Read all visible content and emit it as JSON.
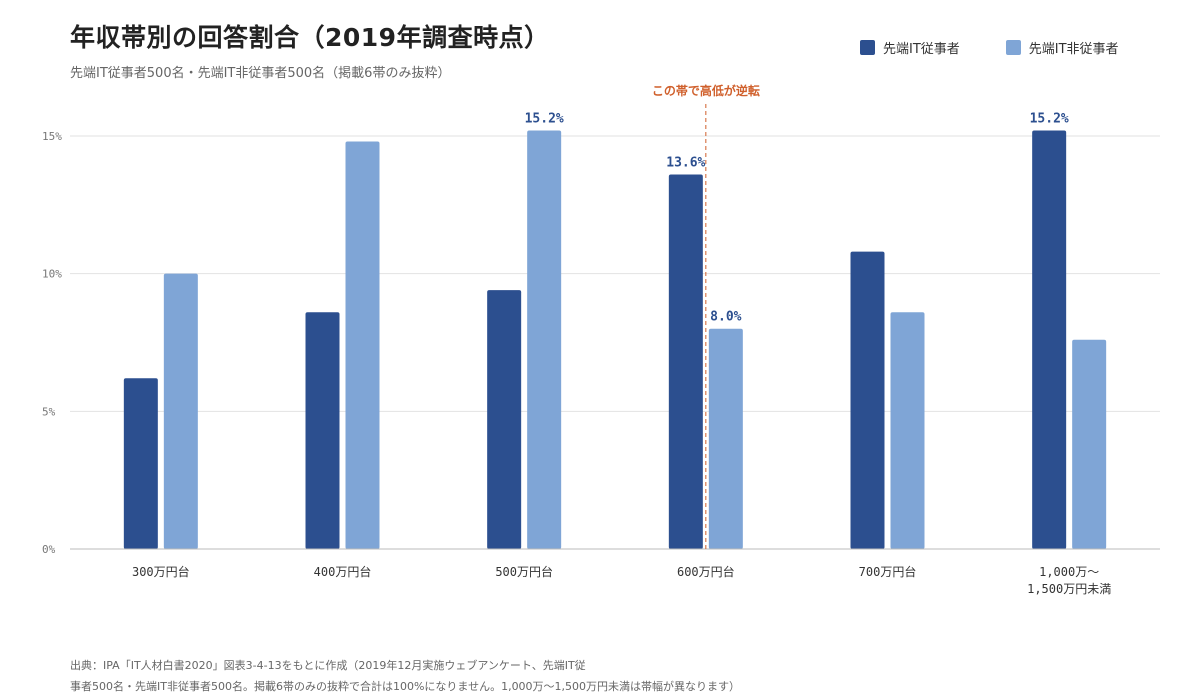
{
  "header": {
    "title": "年収帯別の回答割合（2019年調査時点）",
    "subtitle": "先端IT従事者500名・先端IT非従事者500名（掲載6帯のみ抜粋）"
  },
  "legend": [
    {
      "label": "先端IT従事者",
      "color": "#2c4f8f"
    },
    {
      "label": "先端IT非従事者",
      "color": "#7fa5d6"
    }
  ],
  "chart_data": {
    "type": "bar",
    "categories": [
      [
        "300万円台"
      ],
      [
        "400万円台"
      ],
      [
        "500万円台"
      ],
      [
        "600万円台"
      ],
      [
        "700万円台"
      ],
      [
        "1,000万～",
        "1,500万円未満"
      ]
    ],
    "series": [
      {
        "name": "先端IT従事者",
        "color": "#2c4f8f",
        "values": [
          6.2,
          8.6,
          9.4,
          13.6,
          10.8,
          15.2
        ]
      },
      {
        "name": "先端IT非従事者",
        "color": "#7fa5d6",
        "values": [
          10.0,
          14.8,
          15.2,
          8.0,
          8.6,
          7.6
        ]
      }
    ],
    "ylim": [
      0,
      15
    ],
    "yticks": [
      {
        "value": 0,
        "label": "0%"
      },
      {
        "value": 5,
        "label": "5%"
      },
      {
        "value": 10,
        "label": "10%"
      },
      {
        "value": 15,
        "label": "15%"
      }
    ],
    "grid": true,
    "data_labels": [
      {
        "series": 1,
        "index": 2,
        "text": "15.2%"
      },
      {
        "series": 0,
        "index": 3,
        "text": "13.6%"
      },
      {
        "series": 1,
        "index": 3,
        "text": "8.0%"
      },
      {
        "series": 0,
        "index": 5,
        "text": "15.2%"
      }
    ],
    "annotation": {
      "text": "この帯で高低が逆転",
      "between_index": 3,
      "color": "#d0602c"
    }
  },
  "source": {
    "lines": [
      "出典：IPA「IT人材白書2020」図表3-4-13をもとに作成（2019年12月実施ウェブアンケート、先端IT従",
      "事者500名・先端IT非従事者500名。掲載6帯のみの抜粋で合計は100%になりません。1,000万～1,500万円未満は帯幅が異なります）"
    ]
  }
}
